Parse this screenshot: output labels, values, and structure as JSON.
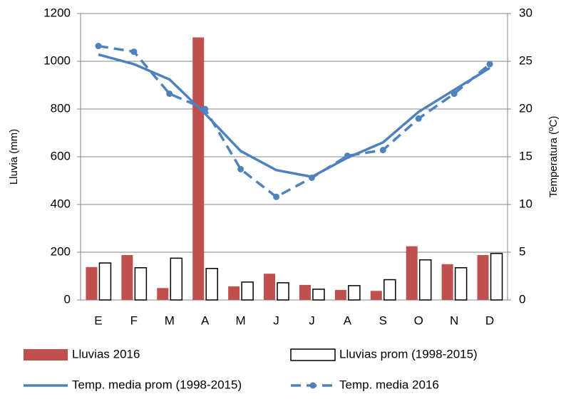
{
  "chart_data": {
    "type": "bar-line",
    "y_label": "Lluvia (mm)",
    "y2_label": "Temperatura (ºC)",
    "categories": [
      "E",
      "F",
      "M",
      "A",
      "M",
      "J",
      "J",
      "A",
      "S",
      "O",
      "N",
      "D"
    ],
    "ylim": [
      0,
      1200
    ],
    "yticks": [
      0,
      200,
      400,
      600,
      800,
      1000,
      1200
    ],
    "y2lim": [
      0,
      30
    ],
    "y2ticks": [
      0,
      5,
      10,
      15,
      20,
      25,
      30
    ],
    "grid": true,
    "legend": "bottom",
    "series": [
      {
        "name": "Lluvias 2016",
        "type": "bar",
        "color": "#c0504d",
        "values": [
          138,
          188,
          50,
          1100,
          57,
          110,
          63,
          42,
          38,
          225,
          150,
          188
        ]
      },
      {
        "name": "Lluvias prom (1998-2015)",
        "type": "bar",
        "color": "#ffffff",
        "values": [
          155,
          135,
          175,
          132,
          75,
          72,
          45,
          60,
          85,
          168,
          135,
          195
        ]
      },
      {
        "name": "Temp. media prom (1998-2015)",
        "type": "line",
        "axis": "y2",
        "color": "#4f81bd",
        "values": [
          25.7,
          24.7,
          23.1,
          19.5,
          15.6,
          13.6,
          12.9,
          14.9,
          16.5,
          19.7,
          22.0,
          24.3
        ]
      },
      {
        "name": "Temp. media 2016",
        "type": "line",
        "axis": "y2",
        "color": "#4f81bd",
        "dashed": true,
        "markers": true,
        "values": [
          26.6,
          26.0,
          21.6,
          20.0,
          13.7,
          10.8,
          12.8,
          15.1,
          15.7,
          19.0,
          21.6,
          24.7
        ]
      }
    ]
  }
}
